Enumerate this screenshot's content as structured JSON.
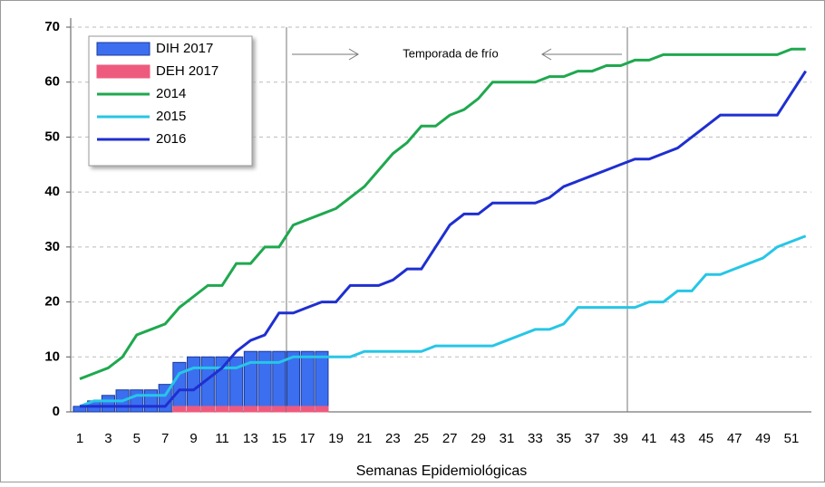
{
  "chart_data": {
    "type": "bar",
    "annotation": "Temporada de frío",
    "xlabel": "Semanas Epidemiológicas",
    "categories": [
      1,
      null,
      3,
      null,
      5,
      null,
      7,
      null,
      9,
      null,
      11,
      null,
      13,
      null,
      15,
      null,
      17,
      null,
      19,
      null,
      21,
      null,
      23,
      null,
      25,
      null,
      27,
      null,
      29,
      null,
      31,
      null,
      33,
      null,
      35,
      null,
      37,
      null,
      39,
      null,
      41,
      null,
      43,
      null,
      45,
      null,
      47,
      null,
      49,
      null,
      51,
      null
    ],
    "ylim": [
      0,
      70
    ],
    "yticks": [
      0,
      10,
      20,
      30,
      40,
      50,
      60,
      70
    ],
    "grid": true,
    "legend": "upper left",
    "series": [
      {
        "name": "DIH 2017",
        "type": "bar",
        "color": "#3b6ff0",
        "values": [
          1,
          2,
          3,
          4,
          4,
          4,
          5,
          9,
          10,
          10,
          10,
          10,
          11,
          11,
          11,
          11,
          11,
          11,
          null,
          null,
          null,
          null,
          null,
          null,
          null,
          null,
          null,
          null,
          null,
          null,
          null,
          null,
          null,
          null,
          null,
          null,
          null,
          null,
          null,
          null,
          null,
          null,
          null,
          null,
          null,
          null,
          null,
          null,
          null,
          null,
          null,
          null
        ]
      },
      {
        "name": "DEH 2017",
        "type": "bar",
        "color": "#ee5a7e",
        "values": [
          0,
          0,
          0,
          0,
          0,
          0,
          0,
          1,
          1,
          1,
          1,
          1,
          1,
          1,
          1,
          1,
          1,
          1,
          null,
          null,
          null,
          null,
          null,
          null,
          null,
          null,
          null,
          null,
          null,
          null,
          null,
          null,
          null,
          null,
          null,
          null,
          null,
          null,
          null,
          null,
          null,
          null,
          null,
          null,
          null,
          null,
          null,
          null,
          null,
          null,
          null,
          null
        ]
      },
      {
        "name": "2014",
        "type": "line",
        "color": "#1fa84f",
        "values": [
          6,
          7,
          8,
          10,
          14,
          15,
          16,
          19,
          21,
          23,
          23,
          27,
          27,
          30,
          30,
          34,
          35,
          36,
          37,
          39,
          41,
          44,
          47,
          49,
          52,
          52,
          54,
          55,
          57,
          60,
          60,
          60,
          60,
          61,
          61,
          62,
          62,
          63,
          63,
          64,
          64,
          65,
          65,
          65,
          65,
          65,
          65,
          65,
          65,
          65,
          66,
          66
        ]
      },
      {
        "name": "2015",
        "type": "line",
        "color": "#27c6e6",
        "values": [
          1,
          2,
          2,
          2,
          3,
          3,
          3,
          7,
          8,
          8,
          8,
          8,
          9,
          9,
          9,
          10,
          10,
          10,
          10,
          10,
          11,
          11,
          11,
          11,
          11,
          12,
          12,
          12,
          12,
          12,
          13,
          14,
          15,
          15,
          16,
          19,
          19,
          19,
          19,
          19,
          20,
          20,
          22,
          22,
          25,
          25,
          26,
          27,
          28,
          30,
          31,
          32
        ]
      },
      {
        "name": "2016",
        "type": "line",
        "color": "#1f2fd0",
        "values": [
          1,
          1,
          1,
          1,
          1,
          1,
          1,
          4,
          4,
          6,
          8,
          11,
          13,
          14,
          18,
          18,
          19,
          20,
          20,
          23,
          23,
          23,
          24,
          26,
          26,
          30,
          34,
          36,
          36,
          38,
          38,
          38,
          38,
          39,
          41,
          42,
          43,
          44,
          45,
          46,
          46,
          47,
          48,
          50,
          52,
          54,
          54,
          54,
          54,
          54,
          58,
          62
        ]
      }
    ]
  }
}
